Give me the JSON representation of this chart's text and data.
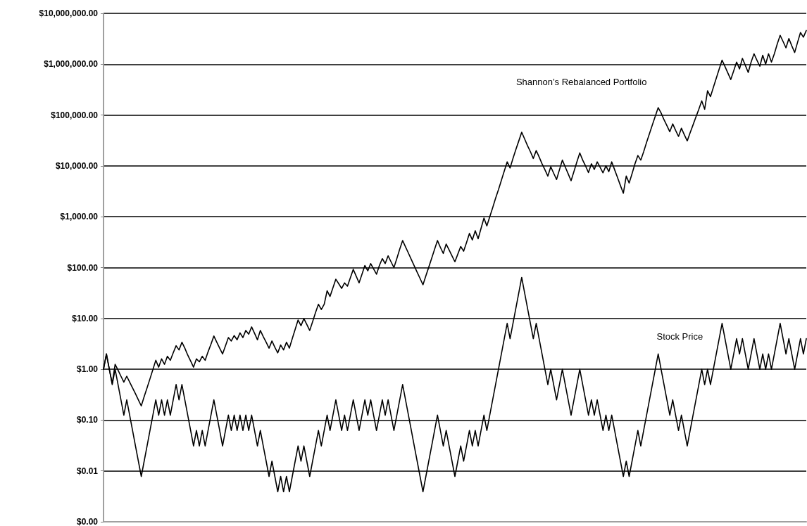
{
  "chart_data": {
    "type": "line",
    "ylim": [
      0.001,
      10000000
    ],
    "log": "y",
    "grid": "y",
    "tick_labels": "y",
    "line_style": "solid",
    "yticks": [
      {
        "value": 0.001,
        "label": "$0.00"
      },
      {
        "value": 0.01,
        "label": "$0.01"
      },
      {
        "value": 0.1,
        "label": "$0.10"
      },
      {
        "value": 1,
        "label": "$1.00"
      },
      {
        "value": 10,
        "label": "$10.00"
      },
      {
        "value": 100,
        "label": "$100.00"
      },
      {
        "value": 1000,
        "label": "$1,000.00"
      },
      {
        "value": 10000,
        "label": "$10,000.00"
      },
      {
        "value": 100000,
        "label": "$100,000.00"
      },
      {
        "value": 1000000,
        "label": "$1,000,000.00"
      },
      {
        "value": 10000000,
        "label": "$10,000,000.00"
      }
    ],
    "annotations": [
      "Shannon’s Rebalanced Portfolio",
      "Stock Price"
    ],
    "categories": [
      null,
      null,
      null,
      null,
      null,
      null,
      null,
      null,
      null,
      null,
      null,
      null,
      null,
      null,
      null,
      null,
      null,
      null,
      null,
      null,
      null,
      null,
      null,
      null,
      null,
      null,
      null,
      null,
      null,
      null,
      null,
      null,
      null,
      null,
      null,
      null,
      null,
      null,
      null,
      null,
      null,
      null,
      null,
      null,
      null,
      null,
      null,
      null,
      null,
      null,
      null,
      null,
      null,
      null,
      null,
      null,
      null,
      null,
      null,
      null,
      null,
      null,
      null,
      null,
      null,
      null,
      null,
      null,
      null,
      null,
      null,
      null,
      null,
      null,
      null,
      null,
      null,
      null,
      null,
      null,
      null,
      null,
      null,
      null,
      null,
      null,
      null,
      null,
      null,
      null,
      null,
      null,
      null,
      null,
      null,
      null,
      null,
      null,
      null,
      null,
      null,
      null,
      null,
      null,
      null,
      null,
      null,
      null,
      null,
      null,
      null,
      null,
      null,
      null,
      null,
      null,
      null,
      null,
      null,
      null,
      null,
      null,
      null,
      null,
      null,
      null,
      null,
      null,
      null,
      null,
      null,
      null,
      null,
      null,
      null,
      null,
      null,
      null,
      null,
      null,
      null,
      null,
      null,
      null,
      null,
      null,
      null,
      null,
      null,
      null,
      null,
      null,
      null,
      null,
      null,
      null,
      null,
      null,
      null,
      null,
      null,
      null,
      null,
      null,
      null,
      null,
      null,
      null,
      null,
      null,
      null,
      null,
      null,
      null,
      null,
      null,
      null,
      null,
      null,
      null,
      null,
      null,
      null,
      null,
      null,
      null,
      null,
      null,
      null,
      null,
      null,
      null,
      null,
      null,
      null,
      null,
      null,
      null,
      null,
      null,
      null,
      null,
      null,
      null,
      null,
      null,
      null,
      null,
      null,
      null,
      null,
      null,
      null,
      null,
      null,
      null,
      null,
      null,
      null,
      null,
      null,
      null,
      null,
      null,
      null,
      null,
      null,
      null,
      null,
      null,
      null,
      null,
      null,
      null,
      null,
      null,
      null,
      null,
      null,
      null,
      null,
      null,
      null
    ],
    "series": [
      {
        "color": "#000000",
        "values": [
          1,
          2,
          1.0,
          0.53,
          1.25,
          0.96,
          0.73,
          0.56,
          0.73,
          0.56,
          0.43,
          0.33,
          0.25,
          0.19,
          0.29,
          0.43,
          0.65,
          0.99,
          1.5,
          1.1,
          1.6,
          1.25,
          1.8,
          1.5,
          2.1,
          2.9,
          2.4,
          3.4,
          2.6,
          1.9,
          1.45,
          1.1,
          1.6,
          1.4,
          1.8,
          1.5,
          2.2,
          3.1,
          4.5,
          3.4,
          2.6,
          2,
          2.9,
          4.2,
          3.6,
          4.6,
          3.8,
          5.2,
          4.2,
          5.8,
          4.9,
          6.8,
          5.1,
          3.8,
          5.8,
          4.4,
          3.4,
          2.6,
          3.6,
          2.7,
          2.1,
          3,
          2.4,
          3.4,
          2.6,
          4.0,
          6.1,
          9.3,
          7.2,
          9.9,
          7.6,
          5.8,
          8.6,
          13,
          19,
          15,
          19,
          35,
          27,
          40,
          59,
          48,
          39,
          50,
          43,
          63,
          92,
          68,
          50,
          74,
          110,
          86,
          120,
          94,
          74,
          110,
          150,
          120,
          170,
          130,
          100,
          150,
          230,
          340,
          255,
          192,
          144,
          108,
          81,
          61,
          46,
          69,
          102,
          152,
          228,
          340,
          250,
          190,
          290,
          222,
          170,
          130,
          184,
          260,
          210,
          310,
          470,
          350,
          530,
          370,
          590,
          940,
          660,
          1000,
          1500,
          2300,
          3400,
          5200,
          7900,
          12000,
          9100,
          14000,
          21000,
          31000,
          46000,
          34000,
          25000,
          19000,
          14000,
          20000,
          15000,
          11000,
          8400,
          6300,
          9600,
          7200,
          5400,
          8400,
          13000,
          9500,
          7000,
          5100,
          7800,
          12000,
          18000,
          13000,
          9900,
          7400,
          11000,
          8500,
          12000,
          9400,
          7300,
          10000,
          7700,
          12000,
          8400,
          5900,
          4100,
          2900,
          6300,
          4600,
          7000,
          11000,
          16000,
          13000,
          19000,
          29000,
          43000,
          64000,
          95000,
          140000,
          110000,
          81000,
          62000,
          47000,
          67000,
          50000,
          38000,
          55000,
          41000,
          31000,
          45000,
          64000,
          92000,
          130000,
          190000,
          130000,
          300000,
          230000,
          350000,
          530000,
          800000,
          1200000,
          900000,
          670000,
          500000,
          740000,
          1100000,
          810000,
          1300000,
          950000,
          690000,
          1100000,
          1600000,
          1200000,
          910000,
          1500000,
          1000000,
          1600000,
          1100000,
          1600000,
          2500000,
          3700000,
          2800000,
          2100000,
          3200000,
          2300000,
          1700000,
          2700000,
          4200000,
          3400000,
          4600000
        ]
      },
      {
        "color": "#000000",
        "values": [
          1,
          2,
          1,
          0.5,
          1,
          0.5,
          0.25,
          0.125,
          0.25,
          0.125,
          0.0625,
          0.031,
          0.0156,
          0.0078,
          0.0156,
          0.031,
          0.0625,
          0.125,
          0.25,
          0.125,
          0.25,
          0.125,
          0.25,
          0.125,
          0.25,
          0.5,
          0.25,
          0.5,
          0.25,
          0.125,
          0.0625,
          0.031,
          0.0625,
          0.031,
          0.0625,
          0.031,
          0.0625,
          0.125,
          0.25,
          0.125,
          0.0625,
          0.031,
          0.0625,
          0.125,
          0.0625,
          0.125,
          0.0625,
          0.125,
          0.0625,
          0.125,
          0.0625,
          0.125,
          0.0625,
          0.031,
          0.0625,
          0.031,
          0.0156,
          0.0078,
          0.0156,
          0.0078,
          0.0039,
          0.0078,
          0.0039,
          0.0078,
          0.0039,
          0.0078,
          0.0156,
          0.031,
          0.0156,
          0.031,
          0.0156,
          0.0078,
          0.0156,
          0.031,
          0.0625,
          0.031,
          0.0625,
          0.125,
          0.0625,
          0.125,
          0.25,
          0.125,
          0.0625,
          0.125,
          0.0625,
          0.125,
          0.25,
          0.125,
          0.0625,
          0.125,
          0.25,
          0.125,
          0.25,
          0.125,
          0.0625,
          0.125,
          0.25,
          0.125,
          0.25,
          0.125,
          0.0625,
          0.125,
          0.25,
          0.5,
          0.25,
          0.125,
          0.0625,
          0.031,
          0.0156,
          0.0078,
          0.0039,
          0.0078,
          0.0156,
          0.031,
          0.0625,
          0.125,
          0.0625,
          0.031,
          0.0625,
          0.031,
          0.0156,
          0.0078,
          0.0156,
          0.031,
          0.0156,
          0.031,
          0.0625,
          0.031,
          0.0625,
          0.031,
          0.0625,
          0.125,
          0.0625,
          0.125,
          0.25,
          0.5,
          1,
          2,
          4,
          8,
          4,
          8,
          16,
          32,
          64,
          32,
          16,
          8,
          4,
          8,
          4,
          2,
          1,
          0.5,
          1,
          0.5,
          0.25,
          0.5,
          1,
          0.5,
          0.25,
          0.125,
          0.25,
          0.5,
          1,
          0.5,
          0.25,
          0.125,
          0.25,
          0.125,
          0.25,
          0.125,
          0.0625,
          0.125,
          0.0625,
          0.125,
          0.0625,
          0.031,
          0.0156,
          0.0078,
          0.0156,
          0.0078,
          0.0156,
          0.031,
          0.0625,
          0.031,
          0.0625,
          0.125,
          0.25,
          0.5,
          1,
          2,
          1,
          0.5,
          0.25,
          0.125,
          0.25,
          0.125,
          0.0625,
          0.125,
          0.0625,
          0.031,
          0.0625,
          0.125,
          0.25,
          0.5,
          1,
          0.5,
          1,
          0.5,
          1,
          2,
          4,
          8,
          4,
          2,
          1,
          2,
          4,
          2,
          4,
          2,
          1,
          2,
          4,
          2,
          1,
          2,
          1,
          2,
          1,
          2,
          4,
          8,
          4,
          2,
          4,
          2,
          1,
          2,
          4,
          2,
          4
        ]
      }
    ]
  }
}
